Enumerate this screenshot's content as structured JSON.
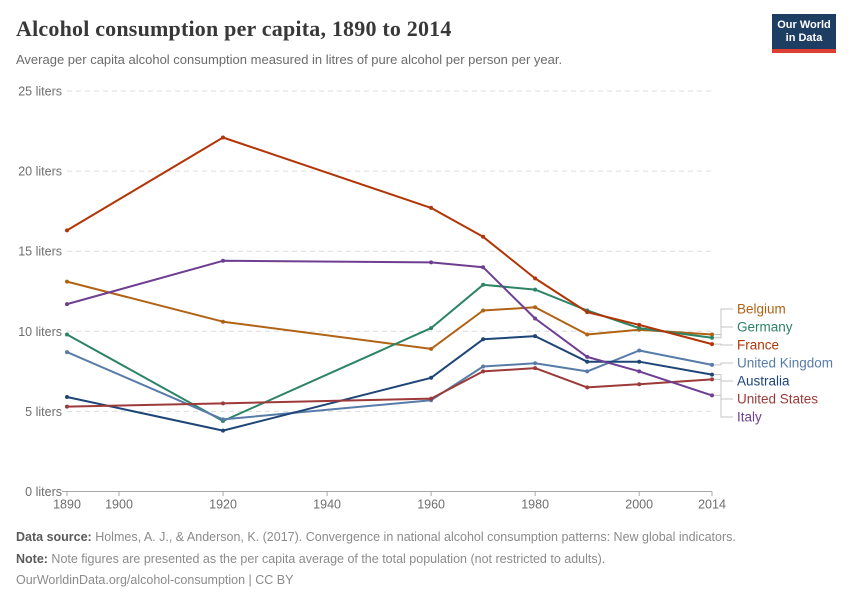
{
  "header": {
    "title": "Alcohol consumption per capita, 1890 to 2014",
    "subtitle": "Average per capita alcohol consumption measured in litres of pure alcohol per person per year.",
    "logo": {
      "line1": "Our World",
      "line2": "in Data",
      "bg_color": "#1d3d63",
      "stripe_color": "#dc3e32"
    }
  },
  "chart_data": {
    "type": "line",
    "x": [
      1890,
      1920,
      1960,
      1970,
      1980,
      1990,
      2000,
      2014
    ],
    "series": [
      {
        "name": "Belgium",
        "color": "#b16214",
        "values": [
          13.1,
          10.6,
          8.9,
          11.3,
          11.5,
          9.8,
          10.1,
          9.8
        ]
      },
      {
        "name": "Germany",
        "color": "#2c8465",
        "values": [
          9.8,
          4.4,
          10.2,
          12.9,
          12.6,
          11.3,
          10.2,
          9.6
        ]
      },
      {
        "name": "France",
        "color": "#b13507",
        "values": [
          16.3,
          22.1,
          17.7,
          15.9,
          13.3,
          11.2,
          10.4,
          9.2
        ]
      },
      {
        "name": "United Kingdom",
        "color": "#577ca9",
        "values": [
          8.7,
          4.5,
          5.7,
          7.8,
          8.0,
          7.5,
          8.8,
          7.9
        ]
      },
      {
        "name": "Australia",
        "color": "#1d4577",
        "values": [
          5.9,
          3.8,
          7.1,
          9.5,
          9.7,
          8.1,
          8.1,
          7.3
        ]
      },
      {
        "name": "United States",
        "color": "#9c3a3a",
        "values": [
          5.3,
          5.5,
          5.8,
          7.5,
          7.7,
          6.5,
          6.7,
          7.0
        ]
      },
      {
        "name": "Italy",
        "color": "#6d3e91",
        "values": [
          11.7,
          14.4,
          14.3,
          14.0,
          10.8,
          8.4,
          7.5,
          6.0
        ]
      }
    ],
    "x_tick_labels": [
      1890,
      1900,
      1920,
      1940,
      1960,
      1980,
      2000,
      2014
    ],
    "y_ticks": [
      0,
      5,
      10,
      15,
      20,
      25
    ],
    "y_tick_suffix": " liters",
    "xlim": [
      1890,
      2014
    ],
    "ylim": [
      0,
      25
    ],
    "grid": "horizontal-dashed",
    "legend_position": "right",
    "legend_order": [
      "Belgium",
      "Germany",
      "France",
      "United Kingdom",
      "Australia",
      "United States",
      "Italy"
    ]
  },
  "footer": {
    "datasource_label": "Data source:",
    "datasource_text": " Holmes, A. J., & Anderson, K. (2017). Convergence in national alcohol consumption patterns: New global indicators.",
    "note_label": "Note:",
    "note_text": " Note figures are presented as the per capita average of the total population (not restricted to adults).",
    "url_line": "OurWorldinData.org/alcohol-consumption | CC BY"
  }
}
